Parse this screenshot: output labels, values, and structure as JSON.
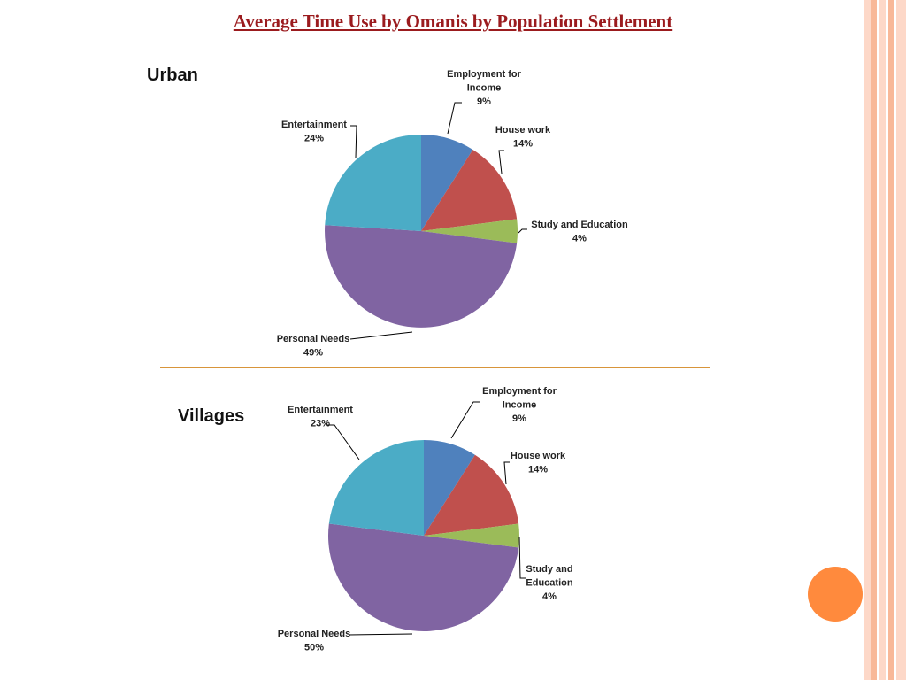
{
  "slide": {
    "title": "Average Time Use by Omanis by Population Settlement",
    "colors": {
      "title": "#9b1b1e",
      "divider": "#d8953a",
      "accent_circle": "#ff8a3d",
      "stripes": [
        "#fdd8c8",
        "#f8b898"
      ]
    }
  },
  "chart_data": [
    {
      "type": "pie",
      "title": "Urban",
      "categories": [
        "Employment for Income",
        "House work",
        "Study and Education",
        "Personal Needs",
        "Entertainment"
      ],
      "values": [
        9,
        14,
        4,
        49,
        24
      ],
      "value_labels": [
        "9%",
        "14%",
        "4%",
        "49%",
        "24%"
      ],
      "label_lines": [
        [
          "Employment for",
          "Income",
          "9%"
        ],
        [
          "House work",
          "14%"
        ],
        [
          "Study and Education",
          "4%"
        ],
        [
          "Personal Needs",
          "49%"
        ],
        [
          "Entertainment",
          "24%"
        ]
      ],
      "colors": [
        "#4f81bd",
        "#c0504d",
        "#9bbb59",
        "#8064a2",
        "#4bacc6"
      ]
    },
    {
      "type": "pie",
      "title": "Villages",
      "categories": [
        "Employment for Income",
        "House work",
        "Study and Education",
        "Personal Needs",
        "Entertainment"
      ],
      "values": [
        9,
        14,
        4,
        50,
        23
      ],
      "value_labels": [
        "9%",
        "14%",
        "4%",
        "50%",
        "23%"
      ],
      "label_lines": [
        [
          "Employment for",
          "Income",
          "9%"
        ],
        [
          "House work",
          "14%"
        ],
        [
          "Study and",
          "Education",
          "4%"
        ],
        [
          "Personal Needs",
          "50%"
        ],
        [
          "Entertainment",
          "23%"
        ]
      ],
      "colors": [
        "#4f81bd",
        "#c0504d",
        "#9bbb59",
        "#8064a2",
        "#4bacc6"
      ]
    }
  ]
}
